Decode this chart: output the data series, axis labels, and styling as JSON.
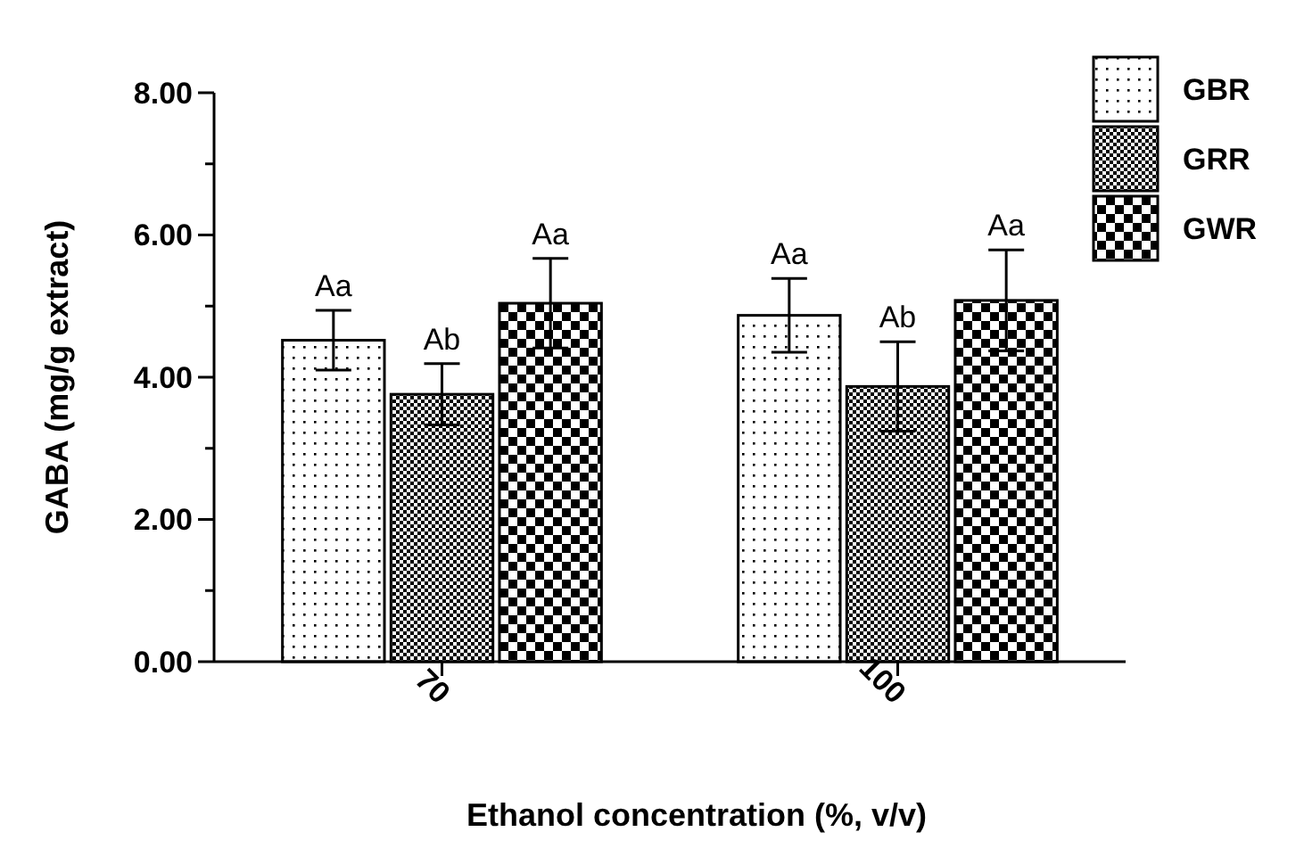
{
  "chart_data": {
    "type": "bar",
    "xlabel": "Ethanol concentration (%, v/v)",
    "ylabel": "GABA (mg/g extract)",
    "categories": [
      "70",
      "100"
    ],
    "series": [
      {
        "name": "GBR",
        "color": "#000000",
        "values": [
          4.52,
          4.87
        ],
        "errors": [
          0.42,
          0.52
        ],
        "value_labels": [
          "Aa",
          "Aa"
        ]
      },
      {
        "name": "GRR",
        "color": "#000000",
        "values": [
          3.76,
          3.87
        ],
        "errors": [
          0.43,
          0.63
        ],
        "value_labels": [
          "Ab",
          "Ab"
        ]
      },
      {
        "name": "GWR",
        "color": "#000000",
        "values": [
          5.04,
          5.08
        ],
        "errors": [
          0.63,
          0.71
        ],
        "value_labels": [
          "Aa",
          "Aa"
        ]
      }
    ],
    "ylim": [
      0,
      8
    ],
    "yticks": [
      {
        "value": 0,
        "label": "0.00"
      },
      {
        "value": 1,
        "label": null
      },
      {
        "value": 2,
        "label": "2.00"
      },
      {
        "value": 3,
        "label": null
      },
      {
        "value": 4,
        "label": "4.00"
      },
      {
        "value": 5,
        "label": null
      },
      {
        "value": 6,
        "label": "6.00"
      },
      {
        "value": 7,
        "label": null
      },
      {
        "value": 8,
        "label": "8.00"
      }
    ],
    "legend": "top right",
    "grid": false
  }
}
